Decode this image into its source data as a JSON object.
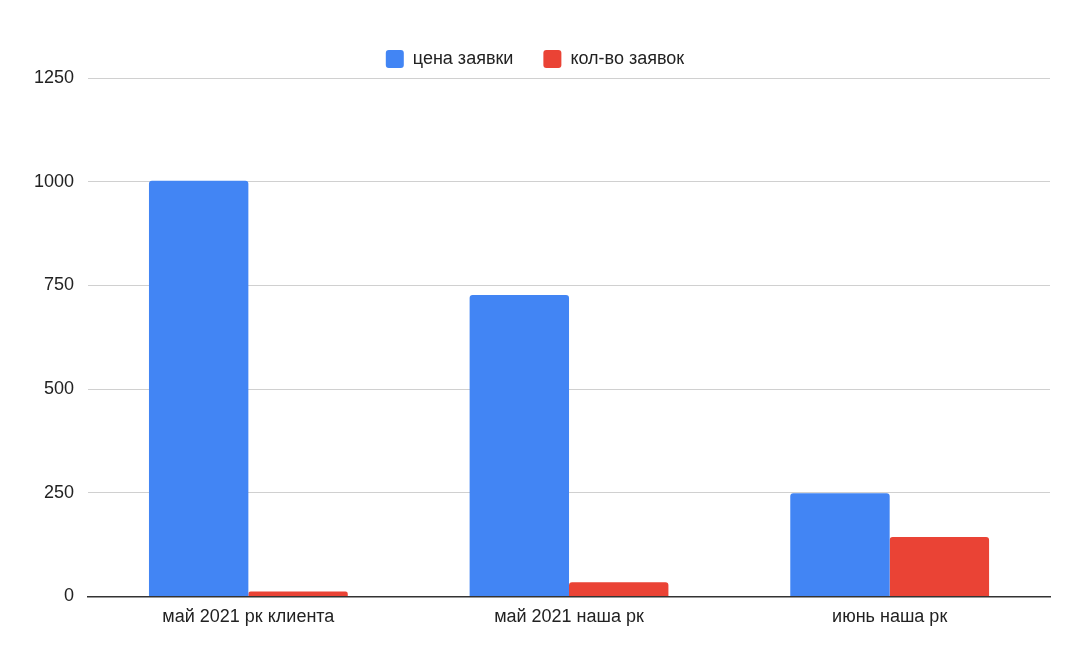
{
  "chart_data": {
    "type": "bar",
    "categories": [
      "май 2021 рк клиента",
      "май 2021 наша рк",
      "июнь наша рк"
    ],
    "series": [
      {
        "name": "цена заявки",
        "color": "#4285f4",
        "values": [
          1002,
          727,
          249
        ]
      },
      {
        "name": "кол-во заявок",
        "color": "#ea4335",
        "values": [
          12,
          34,
          143
        ]
      }
    ],
    "ylim": [
      0,
      1250
    ],
    "yticks": [
      0,
      250,
      500,
      750,
      1000,
      1250
    ],
    "grid": "y",
    "legend": "top"
  }
}
